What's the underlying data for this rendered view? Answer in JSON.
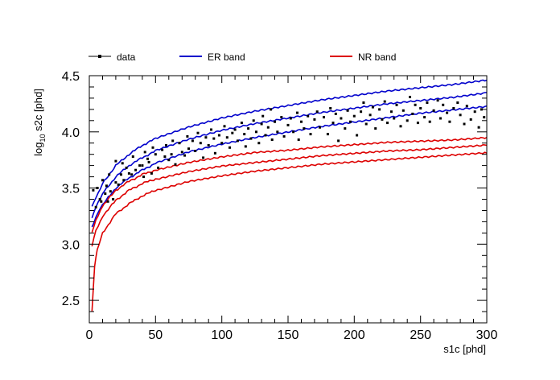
{
  "chart_data": {
    "type": "scatter",
    "xlabel": "s1c [phd]",
    "ylabel_prefix": "log",
    "ylabel_sub": "10",
    "ylabel_suffix": " s2c [phd]",
    "xlim": [
      0,
      300
    ],
    "ylim": [
      2.3,
      4.5
    ],
    "x_ticks": [
      0,
      50,
      100,
      150,
      200,
      250,
      300
    ],
    "x_tick_labels": [
      "0",
      "50",
      "100",
      "150",
      "200",
      "250",
      "300"
    ],
    "y_ticks": [
      2.5,
      3.0,
      3.5,
      4.0,
      4.5
    ],
    "y_tick_labels": [
      "2.5",
      "3.0",
      "3.5",
      "4.0",
      "4.5"
    ],
    "grid": false,
    "legend": [
      {
        "label": "data",
        "color": "#000000",
        "style": "marker-line"
      },
      {
        "label": "ER band",
        "color": "#0000cc",
        "style": "line"
      },
      {
        "label": "NR band",
        "color": "#dd0000",
        "style": "line"
      }
    ],
    "legend_position": "top",
    "colors": {
      "data": "#000000",
      "er": "#0000cc",
      "nr": "#dd0000"
    },
    "series": [
      {
        "name": "ER band",
        "band": "upper",
        "color": "#0000cc",
        "x": [
          2,
          5,
          10,
          20,
          30,
          40,
          50,
          75,
          100,
          125,
          150,
          175,
          200,
          225,
          250,
          275,
          300
        ],
        "y": [
          3.33,
          3.42,
          3.54,
          3.7,
          3.8,
          3.88,
          3.94,
          4.04,
          4.12,
          4.18,
          4.23,
          4.28,
          4.32,
          4.36,
          4.39,
          4.42,
          4.46
        ]
      },
      {
        "name": "ER band",
        "band": "median",
        "color": "#0000cc",
        "x": [
          2,
          5,
          10,
          20,
          30,
          40,
          50,
          75,
          100,
          125,
          150,
          175,
          200,
          225,
          250,
          275,
          300
        ],
        "y": [
          3.24,
          3.33,
          3.45,
          3.6,
          3.7,
          3.77,
          3.83,
          3.93,
          4.01,
          4.07,
          4.12,
          4.17,
          4.21,
          4.25,
          4.28,
          4.31,
          4.35
        ]
      },
      {
        "name": "ER band",
        "band": "lower",
        "color": "#0000cc",
        "x": [
          2,
          5,
          10,
          20,
          30,
          40,
          50,
          75,
          100,
          125,
          150,
          175,
          200,
          225,
          250,
          275,
          300
        ],
        "y": [
          3.16,
          3.24,
          3.35,
          3.5,
          3.59,
          3.66,
          3.72,
          3.82,
          3.89,
          3.95,
          4.0,
          4.05,
          4.09,
          4.13,
          4.17,
          4.2,
          4.23
        ]
      },
      {
        "name": "NR band",
        "band": "upper",
        "color": "#dd0000",
        "x": [
          2,
          5,
          10,
          20,
          30,
          40,
          50,
          75,
          100,
          125,
          150,
          175,
          200,
          225,
          250,
          275,
          300
        ],
        "y": [
          3.1,
          3.22,
          3.34,
          3.48,
          3.56,
          3.62,
          3.66,
          3.73,
          3.78,
          3.82,
          3.84,
          3.87,
          3.89,
          3.91,
          3.92,
          3.93,
          3.95
        ]
      },
      {
        "name": "NR band",
        "band": "median",
        "color": "#dd0000",
        "x": [
          2,
          5,
          10,
          20,
          30,
          40,
          50,
          75,
          100,
          125,
          150,
          175,
          200,
          225,
          250,
          275,
          300
        ],
        "y": [
          2.98,
          3.12,
          3.25,
          3.39,
          3.48,
          3.54,
          3.58,
          3.65,
          3.7,
          3.73,
          3.76,
          3.79,
          3.81,
          3.83,
          3.84,
          3.86,
          3.88
        ]
      },
      {
        "name": "NR band",
        "band": "lower",
        "color": "#dd0000",
        "x": [
          2,
          4,
          6,
          10,
          20,
          30,
          40,
          50,
          75,
          100,
          125,
          150,
          175,
          200,
          225,
          250,
          275,
          300
        ],
        "y": [
          2.4,
          2.8,
          2.95,
          3.1,
          3.27,
          3.36,
          3.43,
          3.48,
          3.56,
          3.61,
          3.65,
          3.68,
          3.71,
          3.73,
          3.75,
          3.77,
          3.79,
          3.81
        ]
      }
    ],
    "data_points": [
      [
        3,
        3.48
      ],
      [
        5,
        3.33
      ],
      [
        6,
        3.5
      ],
      [
        8,
        3.4
      ],
      [
        9,
        3.38
      ],
      [
        10,
        3.57
      ],
      [
        12,
        3.45
      ],
      [
        13,
        3.52
      ],
      [
        14,
        3.38
      ],
      [
        15,
        3.62
      ],
      [
        16,
        3.47
      ],
      [
        18,
        3.4
      ],
      [
        20,
        3.74
      ],
      [
        20,
        3.55
      ],
      [
        22,
        3.53
      ],
      [
        24,
        3.62
      ],
      [
        25,
        3.72
      ],
      [
        26,
        3.57
      ],
      [
        28,
        3.68
      ],
      [
        30,
        3.63
      ],
      [
        32,
        3.62
      ],
      [
        33,
        3.78
      ],
      [
        35,
        3.66
      ],
      [
        38,
        3.7
      ],
      [
        40,
        3.7
      ],
      [
        41,
        3.6
      ],
      [
        42,
        3.82
      ],
      [
        44,
        3.76
      ],
      [
        45,
        3.73
      ],
      [
        47,
        3.63
      ],
      [
        48,
        3.86
      ],
      [
        50,
        3.8
      ],
      [
        52,
        3.68
      ],
      [
        55,
        3.84
      ],
      [
        57,
        3.78
      ],
      [
        58,
        3.88
      ],
      [
        60,
        3.75
      ],
      [
        62,
        3.8
      ],
      [
        63,
        3.92
      ],
      [
        65,
        3.71
      ],
      [
        68,
        3.9
      ],
      [
        70,
        3.82
      ],
      [
        72,
        3.79
      ],
      [
        74,
        3.96
      ],
      [
        75,
        3.85
      ],
      [
        78,
        3.92
      ],
      [
        80,
        3.83
      ],
      [
        82,
        3.99
      ],
      [
        84,
        3.9
      ],
      [
        86,
        3.77
      ],
      [
        88,
        3.95
      ],
      [
        90,
        3.88
      ],
      [
        92,
        4.02
      ],
      [
        94,
        3.94
      ],
      [
        95,
        3.81
      ],
      [
        98,
        3.97
      ],
      [
        100,
        3.9
      ],
      [
        102,
        4.05
      ],
      [
        104,
        3.95
      ],
      [
        106,
        3.86
      ],
      [
        108,
        3.99
      ],
      [
        110,
        4.02
      ],
      [
        112,
        3.92
      ],
      [
        115,
        4.08
      ],
      [
        117,
        3.98
      ],
      [
        118,
        3.87
      ],
      [
        120,
        4.03
      ],
      [
        122,
        3.94
      ],
      [
        124,
        4.1
      ],
      [
        126,
        4.0
      ],
      [
        128,
        3.9
      ],
      [
        130,
        4.07
      ],
      [
        131,
        4.14
      ],
      [
        133,
        3.97
      ],
      [
        135,
        4.04
      ],
      [
        137,
        4.2
      ],
      [
        138,
        3.93
      ],
      [
        140,
        4.09
      ],
      [
        142,
        4.0
      ],
      [
        145,
        4.13
      ],
      [
        147,
        3.96
      ],
      [
        150,
        4.06
      ],
      [
        152,
        4.12
      ],
      [
        154,
        4.0
      ],
      [
        157,
        4.17
      ],
      [
        158,
        3.93
      ],
      [
        160,
        4.09
      ],
      [
        162,
        4.03
      ],
      [
        165,
        4.14
      ],
      [
        167,
        3.98
      ],
      [
        170,
        4.11
      ],
      [
        172,
        4.18
      ],
      [
        174,
        4.04
      ],
      [
        177,
        4.13
      ],
      [
        180,
        3.98
      ],
      [
        182,
        4.21
      ],
      [
        184,
        4.08
      ],
      [
        186,
        4.16
      ],
      [
        188,
        3.92
      ],
      [
        190,
        4.12
      ],
      [
        193,
        4.03
      ],
      [
        195,
        4.19
      ],
      [
        197,
        4.09
      ],
      [
        200,
        4.14
      ],
      [
        202,
        3.97
      ],
      [
        205,
        4.18
      ],
      [
        207,
        4.26
      ],
      [
        209,
        4.07
      ],
      [
        212,
        4.15
      ],
      [
        214,
        4.22
      ],
      [
        216,
        4.03
      ],
      [
        219,
        4.2
      ],
      [
        221,
        4.11
      ],
      [
        223,
        4.27
      ],
      [
        225,
        4.08
      ],
      [
        228,
        4.18
      ],
      [
        230,
        4.12
      ],
      [
        232,
        4.24
      ],
      [
        235,
        4.05
      ],
      [
        237,
        4.19
      ],
      [
        240,
        4.1
      ],
      [
        242,
        4.31
      ],
      [
        244,
        4.16
      ],
      [
        246,
        4.24
      ],
      [
        248,
        4.08
      ],
      [
        250,
        4.21
      ],
      [
        253,
        4.13
      ],
      [
        255,
        4.26
      ],
      [
        257,
        4.09
      ],
      [
        260,
        4.19
      ],
      [
        263,
        4.28
      ],
      [
        265,
        4.12
      ],
      [
        267,
        4.24
      ],
      [
        270,
        4.17
      ],
      [
        272,
        4.09
      ],
      [
        275,
        4.21
      ],
      [
        278,
        4.26
      ],
      [
        280,
        4.15
      ],
      [
        283,
        4.07
      ],
      [
        285,
        4.23
      ],
      [
        288,
        4.11
      ],
      [
        291,
        4.18
      ],
      [
        294,
        4.04
      ],
      [
        296,
        4.2
      ],
      [
        298,
        4.13
      ]
    ]
  }
}
